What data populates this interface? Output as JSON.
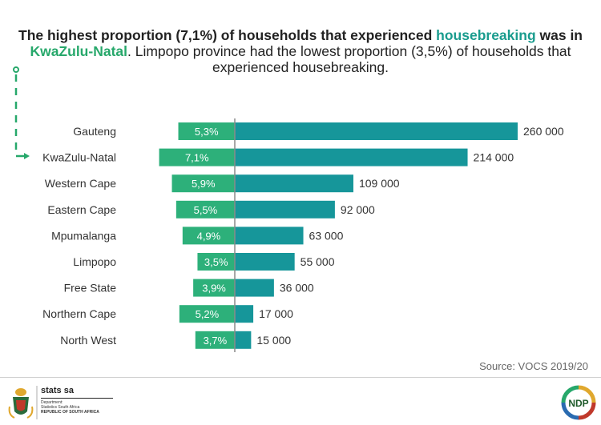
{
  "headline": {
    "part1": "The highest proportion (7,1%) of households that experienced ",
    "highlight1": "housebreaking",
    "part2": " was in",
    "highlight2": "KwaZulu-Natal",
    "part3": ". Limpopo province had the lowest proportion (3,5%) of households that",
    "part4": "experienced housebreaking."
  },
  "source": "Source: VOCS 2019/20",
  "logos": {
    "stats_sa": {
      "name": "stats sa",
      "line1": "Department:",
      "line2": "Statistics South Africa",
      "line3": "REPUBLIC OF SOUTH AFRICA"
    },
    "ndp": "NDP"
  },
  "colors": {
    "proportion_bar": "#2db07a",
    "count_bar": "#16969a",
    "axis": "#8a8a8a",
    "highlight": "#1a9c8e",
    "arrow": "#27a86b"
  },
  "chart_data": {
    "type": "bar",
    "orientation": "horizontal",
    "categories": [
      "Gauteng",
      "KwaZulu-Natal",
      "Western Cape",
      "Eastern Cape",
      "Mpumalanga",
      "Limpopo",
      "Free State",
      "Northern Cape",
      "North West"
    ],
    "series": [
      {
        "name": "",
        "values": [
          5.3,
          7.1,
          5.9,
          5.5,
          4.9,
          3.5,
          3.9,
          5.2,
          3.7
        ],
        "labels": [
          "5,3%",
          "7,1%",
          "5,9%",
          "5,5%",
          "4,9%",
          "3,5%",
          "3,9%",
          "5,2%",
          "3,7%"
        ]
      },
      {
        "name": "",
        "values": [
          260000,
          214000,
          109000,
          92000,
          63000,
          55000,
          36000,
          17000,
          15000
        ],
        "labels": [
          "260 000",
          "214 000",
          "109 000",
          "92 000",
          "63 000",
          "55 000",
          "36 000",
          "17 000",
          "15 000"
        ]
      }
    ],
    "highlighted_category": "KwaZulu-Natal",
    "grid": false,
    "legend": "none"
  }
}
